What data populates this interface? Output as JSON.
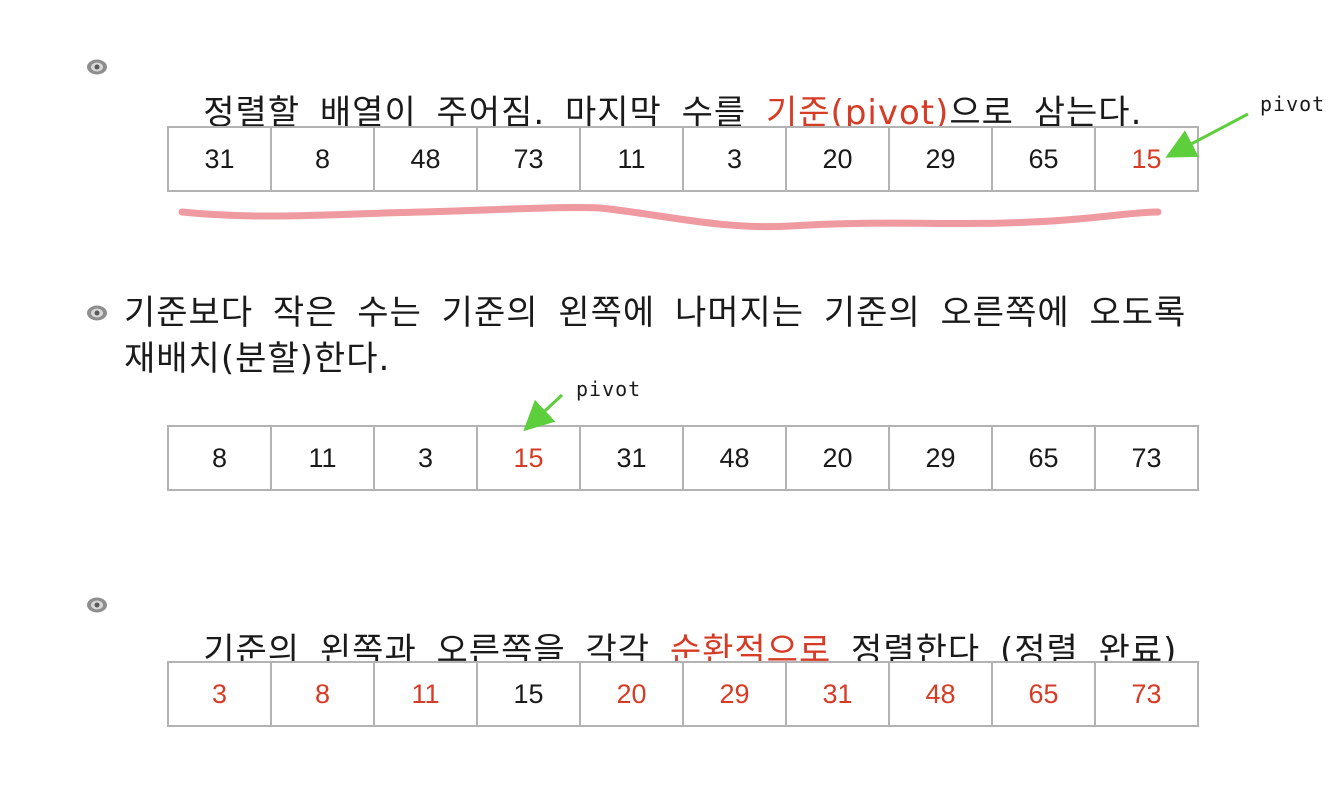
{
  "steps": [
    {
      "text_before": "정렬할 배열이 주어짐. 마지막 수를 ",
      "text_highlight": "기준(pivot)",
      "text_after": "으로 삼는다."
    },
    {
      "line1": "기준보다 작은 수는 기준의 왼쪽에 나머지는 기준의 오른쪽에 오도록",
      "line2": "재배치(분할)한다."
    },
    {
      "text_before": "기준의 왼쪽과 오른쪽을 각각 ",
      "text_highlight": "순환적으로",
      "text_after": " 정렬한다 (정렬 완료)"
    }
  ],
  "arrays": [
    {
      "values": [
        "31",
        "8",
        "48",
        "73",
        "11",
        "3",
        "20",
        "29",
        "65",
        "15"
      ],
      "highlighted": [
        false,
        false,
        false,
        false,
        false,
        false,
        false,
        false,
        false,
        true
      ]
    },
    {
      "values": [
        "8",
        "11",
        "3",
        "15",
        "31",
        "48",
        "20",
        "29",
        "65",
        "73"
      ],
      "highlighted": [
        false,
        false,
        false,
        true,
        false,
        false,
        false,
        false,
        false,
        false
      ]
    },
    {
      "values": [
        "3",
        "8",
        "11",
        "15",
        "20",
        "29",
        "31",
        "48",
        "65",
        "73"
      ],
      "highlighted": [
        true,
        true,
        true,
        false,
        true,
        true,
        true,
        true,
        true,
        true
      ]
    }
  ],
  "annotations": {
    "pivot_label_1": "pivot",
    "pivot_label_2": "pivot"
  },
  "colors": {
    "highlight": "#d63b25",
    "arrow": "#5ecf3c",
    "underline": "#ee9aa0",
    "cell_border": "#b3b3b3"
  },
  "icons": {
    "bullet": "eye-bullet-icon",
    "arrow": "green-arrow-icon",
    "underline": "pink-underline-stroke"
  }
}
